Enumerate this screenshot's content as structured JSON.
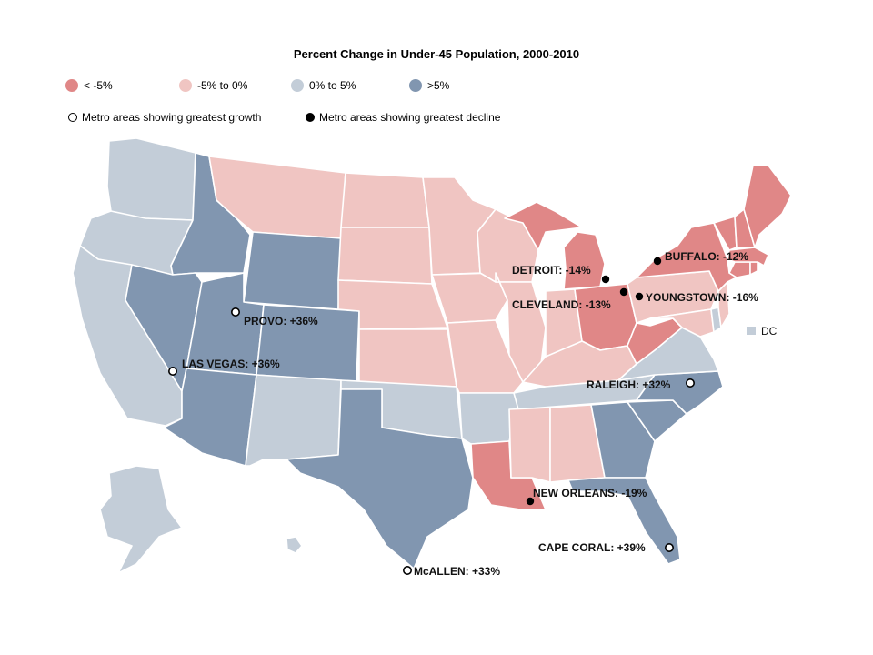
{
  "title": "Percent Change in Under-45 Population, 2000-2010",
  "colors": {
    "lt_neg5": "#e08787",
    "neg5_to_0": "#f0c5c2",
    "zero_to_5": "#c3cdd8",
    "gt_5": "#8196b0"
  },
  "legend": {
    "categories": [
      {
        "label": "< -5%",
        "color_key": "lt_neg5"
      },
      {
        "label": "-5% to 0%",
        "color_key": "neg5_to_0"
      },
      {
        "label": "0% to 5%",
        "color_key": "zero_to_5"
      },
      {
        "label": ">5%",
        "color_key": "gt_5"
      }
    ],
    "growth_label": "Metro areas showing greatest growth",
    "decline_label": "Metro areas showing greatest decline"
  },
  "dc_label": "DC",
  "states": {
    "WA": "zero_to_5",
    "OR": "zero_to_5",
    "CA": "zero_to_5",
    "NV": "gt_5",
    "ID": "gt_5",
    "MT": "neg5_to_0",
    "WY": "gt_5",
    "UT": "gt_5",
    "AZ": "gt_5",
    "CO": "gt_5",
    "NM": "zero_to_5",
    "ND": "neg5_to_0",
    "SD": "neg5_to_0",
    "NE": "neg5_to_0",
    "KS": "neg5_to_0",
    "OK": "zero_to_5",
    "TX": "gt_5",
    "MN": "neg5_to_0",
    "IA": "neg5_to_0",
    "MO": "neg5_to_0",
    "AR": "zero_to_5",
    "LA": "lt_neg5",
    "WI": "neg5_to_0",
    "IL": "neg5_to_0",
    "MI": "lt_neg5",
    "IN": "neg5_to_0",
    "OH": "lt_neg5",
    "KY": "neg5_to_0",
    "TN": "zero_to_5",
    "MS": "neg5_to_0",
    "AL": "neg5_to_0",
    "GA": "gt_5",
    "FL": "gt_5",
    "SC": "gt_5",
    "NC": "gt_5",
    "VA": "zero_to_5",
    "WV": "lt_neg5",
    "PA": "neg5_to_0",
    "NY": "lt_neg5",
    "MD": "neg5_to_0",
    "DE": "zero_to_5",
    "NJ": "neg5_to_0",
    "CT": "lt_neg5",
    "RI": "lt_neg5",
    "MA": "lt_neg5",
    "VT": "lt_neg5",
    "NH": "lt_neg5",
    "ME": "lt_neg5",
    "AK": "zero_to_5",
    "HI": "zero_to_5",
    "DC": "zero_to_5"
  },
  "metros": [
    {
      "name": "PROVO: +36%",
      "type": "growth"
    },
    {
      "name": "LAS VEGAS: +36%",
      "type": "growth"
    },
    {
      "name": "McALLEN: +33%",
      "type": "growth"
    },
    {
      "name": "RALEIGH: +32%",
      "type": "growth"
    },
    {
      "name": "CAPE CORAL: +39%",
      "type": "growth"
    },
    {
      "name": "DETROIT: -14%",
      "type": "decline"
    },
    {
      "name": "BUFFALO: -12%",
      "type": "decline"
    },
    {
      "name": "CLEVELAND: -13%",
      "type": "decline"
    },
    {
      "name": "YOUNGSTOWN: -16%",
      "type": "decline"
    },
    {
      "name": "NEW ORLEANS: -19%",
      "type": "decline"
    }
  ]
}
